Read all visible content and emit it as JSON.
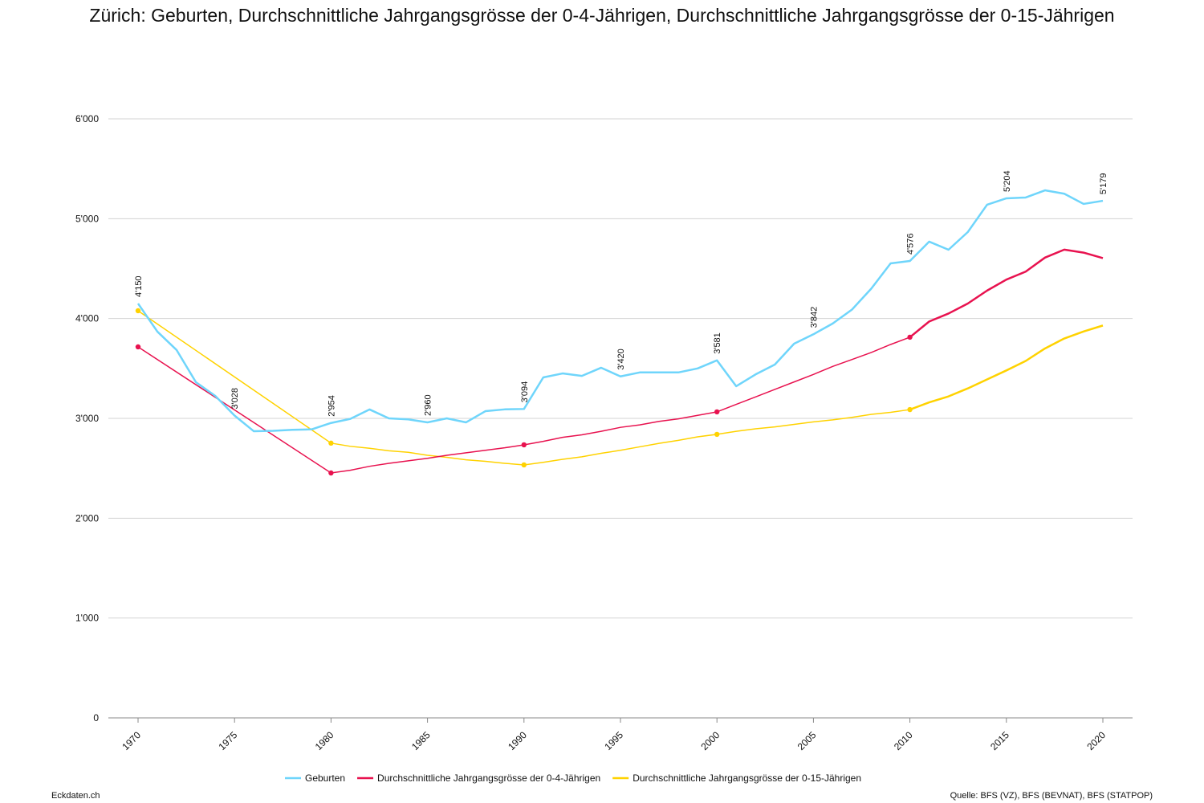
{
  "chart_data": {
    "type": "line",
    "title": "Zürich: Geburten, Durchschnittliche Jahrgangsgrösse der 0-4-Jährigen, Durchschnittliche Jahrgangsgrösse der 0-15-Jährigen",
    "xlabel": "",
    "ylabel": "",
    "xlim": [
      1970,
      2020
    ],
    "ylim": [
      0,
      6000
    ],
    "grid": true,
    "legend": "bottom",
    "x_ticks": [
      "1970",
      "1975",
      "1980",
      "1985",
      "1990",
      "1995",
      "2000",
      "2005",
      "2010",
      "2015",
      "2020"
    ],
    "y_ticks": [
      {
        "v": 0,
        "label": "0"
      },
      {
        "v": 1000,
        "label": "1'000"
      },
      {
        "v": 2000,
        "label": "2'000"
      },
      {
        "v": 3000,
        "label": "3'000"
      },
      {
        "v": 4000,
        "label": "4'000"
      },
      {
        "v": 5000,
        "label": "5'000"
      },
      {
        "v": 6000,
        "label": "6'000"
      }
    ],
    "series": [
      {
        "name": "Geburten",
        "color": "#6fd5fb",
        "x": [
          1970,
          1971,
          1972,
          1973,
          1974,
          1975,
          1976,
          1977,
          1978,
          1979,
          1980,
          1981,
          1982,
          1983,
          1984,
          1985,
          1986,
          1987,
          1988,
          1989,
          1990,
          1991,
          1992,
          1993,
          1994,
          1995,
          1996,
          1997,
          1998,
          1999,
          2000,
          2001,
          2002,
          2003,
          2004,
          2005,
          2006,
          2007,
          2008,
          2009,
          2010,
          2011,
          2012,
          2013,
          2014,
          2015,
          2016,
          2017,
          2018,
          2019,
          2020
        ],
        "values": [
          4150,
          3869,
          3684,
          3362,
          3225,
          3028,
          2871,
          2875,
          2885,
          2890,
          2954,
          2995,
          3089,
          3000,
          2990,
          2960,
          3000,
          2960,
          3072,
          3090,
          3094,
          3410,
          3450,
          3425,
          3507,
          3420,
          3460,
          3460,
          3460,
          3500,
          3581,
          3322,
          3440,
          3539,
          3748,
          3842,
          3950,
          4090,
          4300,
          4552,
          4576,
          4770,
          4689,
          4866,
          5140,
          5204,
          5212,
          5284,
          5250,
          5148,
          5179
        ],
        "labels": [
          {
            "x": 1970,
            "text": "4'150"
          },
          {
            "x": 1975,
            "text": "3'028"
          },
          {
            "x": 1980,
            "text": "2'954"
          },
          {
            "x": 1985,
            "text": "2'960"
          },
          {
            "x": 1990,
            "text": "3'094"
          },
          {
            "x": 1995,
            "text": "3'420"
          },
          {
            "x": 2000,
            "text": "3'581"
          },
          {
            "x": 2005,
            "text": "3'842"
          },
          {
            "x": 2010,
            "text": "4'576"
          },
          {
            "x": 2015,
            "text": "5'204"
          },
          {
            "x": 2020,
            "text": "5'179"
          }
        ]
      },
      {
        "name": "Durchschnittliche Jahrgangsgrösse der 0-4-Jährigen",
        "color": "#e8124f",
        "x": [
          1970,
          1980,
          1981,
          1982,
          1983,
          1984,
          1985,
          1986,
          1987,
          1988,
          1989,
          1990,
          1991,
          1992,
          1993,
          1994,
          1995,
          1996,
          1997,
          1998,
          1999,
          2000,
          2001,
          2002,
          2003,
          2004,
          2005,
          2006,
          2007,
          2008,
          2009,
          2010,
          2011,
          2012,
          2013,
          2014,
          2015,
          2016,
          2017,
          2018,
          2019,
          2020
        ],
        "values": [
          3716,
          2453,
          2480,
          2520,
          2550,
          2575,
          2600,
          2630,
          2655,
          2680,
          2705,
          2735,
          2770,
          2810,
          2835,
          2870,
          2910,
          2935,
          2970,
          2995,
          3030,
          3065,
          3140,
          3215,
          3290,
          3365,
          3440,
          3520,
          3590,
          3660,
          3740,
          3813,
          3970,
          4050,
          4150,
          4280,
          4390,
          4470,
          4610,
          4690,
          4660,
          4605
        ],
        "markers": [
          1970,
          1980,
          1990,
          2000,
          2010
        ]
      },
      {
        "name": "Durchschnittliche Jahrgangsgrösse der 0-15-Jährigen",
        "color": "#ffd200",
        "x": [
          1970,
          1980,
          1981,
          1982,
          1983,
          1984,
          1985,
          1986,
          1987,
          1988,
          1989,
          1990,
          1991,
          1992,
          1993,
          1994,
          1995,
          1996,
          1997,
          1998,
          1999,
          2000,
          2001,
          2002,
          2003,
          2004,
          2005,
          2006,
          2007,
          2008,
          2009,
          2010,
          2011,
          2012,
          2013,
          2014,
          2015,
          2016,
          2017,
          2018,
          2019,
          2020
        ],
        "values": [
          4078,
          2752,
          2720,
          2700,
          2675,
          2660,
          2630,
          2610,
          2585,
          2570,
          2550,
          2534,
          2560,
          2590,
          2615,
          2650,
          2680,
          2715,
          2750,
          2780,
          2815,
          2840,
          2870,
          2895,
          2915,
          2940,
          2965,
          2985,
          3010,
          3040,
          3060,
          3088,
          3160,
          3220,
          3300,
          3390,
          3480,
          3575,
          3700,
          3800,
          3870,
          3930
        ],
        "markers": [
          1970,
          1980,
          1990,
          2000,
          2010
        ]
      }
    ]
  },
  "footer": {
    "source": "Eckdaten.ch",
    "credit": "Quelle: BFS (VZ), BFS (BEVNAT), BFS (STATPOP)"
  }
}
